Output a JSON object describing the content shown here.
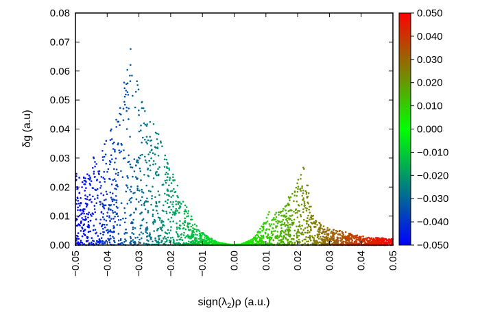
{
  "chart_data": {
    "type": "scatter",
    "title": "",
    "xlabel_prefix": "sign(λ",
    "xlabel_sub": "2",
    "xlabel_suffix": ")ρ (a.u.)",
    "ylabel": "δg (a.u)",
    "xlim": [
      -0.05,
      0.05
    ],
    "ylim": [
      0.0,
      0.08
    ],
    "x_ticks": [
      "−0.05",
      "−0.04",
      "−0.03",
      "−0.02",
      "−0.01",
      "0.00",
      "0.01",
      "0.02",
      "0.03",
      "0.04",
      "0.05"
    ],
    "y_ticks": [
      "0.00",
      "0.01",
      "0.02",
      "0.03",
      "0.04",
      "0.05",
      "0.06",
      "0.07",
      "0.08"
    ],
    "colorbar": {
      "min": -0.05,
      "max": 0.05,
      "ticks": [
        "0.050",
        "0.040",
        "0.030",
        "0.020",
        "0.010",
        "0.000",
        "−0.010",
        "−0.020",
        "−0.030",
        "−0.040",
        "−0.050"
      ],
      "colors": [
        "#0000ff",
        "#00ff00",
        "#ff0000"
      ]
    },
    "grid": false,
    "legend": "none",
    "series": [
      {
        "envelope": [
          [
            -0.05,
            0.026
          ],
          [
            -0.048,
            0.024
          ],
          [
            -0.046,
            0.025
          ],
          [
            -0.044,
            0.032
          ],
          [
            -0.042,
            0.031
          ],
          [
            -0.04,
            0.04
          ],
          [
            -0.038,
            0.042
          ],
          [
            -0.036,
            0.054
          ],
          [
            -0.034,
            0.058
          ],
          [
            -0.033,
            0.07
          ],
          [
            -0.032,
            0.066
          ],
          [
            -0.031,
            0.058
          ],
          [
            -0.03,
            0.054
          ],
          [
            -0.028,
            0.049
          ],
          [
            -0.026,
            0.044
          ],
          [
            -0.024,
            0.04
          ],
          [
            -0.022,
            0.033
          ],
          [
            -0.02,
            0.027
          ],
          [
            -0.018,
            0.022
          ],
          [
            -0.016,
            0.016
          ],
          [
            -0.014,
            0.011
          ],
          [
            -0.012,
            0.007
          ],
          [
            -0.01,
            0.0045
          ],
          [
            -0.008,
            0.0028
          ],
          [
            -0.006,
            0.0016
          ],
          [
            -0.004,
            0.0008
          ],
          [
            -0.002,
            0.0003
          ],
          [
            0.0,
            0.0
          ],
          [
            0.002,
            0.0004
          ],
          [
            0.004,
            0.0012
          ],
          [
            0.006,
            0.0025
          ],
          [
            0.008,
            0.0055
          ],
          [
            0.01,
            0.0092
          ],
          [
            0.011,
            0.0122
          ],
          [
            0.012,
            0.0108
          ],
          [
            0.014,
            0.0115
          ],
          [
            0.016,
            0.015
          ],
          [
            0.018,
            0.019
          ],
          [
            0.02,
            0.024
          ],
          [
            0.021,
            0.0268
          ],
          [
            0.022,
            0.0272
          ],
          [
            0.023,
            0.022
          ],
          [
            0.024,
            0.015
          ],
          [
            0.026,
            0.0085
          ],
          [
            0.028,
            0.007
          ],
          [
            0.03,
            0.0055
          ],
          [
            0.034,
            0.005
          ],
          [
            0.038,
            0.0035
          ],
          [
            0.042,
            0.0028
          ],
          [
            0.046,
            0.0025
          ],
          [
            0.05,
            0.0022
          ]
        ]
      }
    ]
  }
}
